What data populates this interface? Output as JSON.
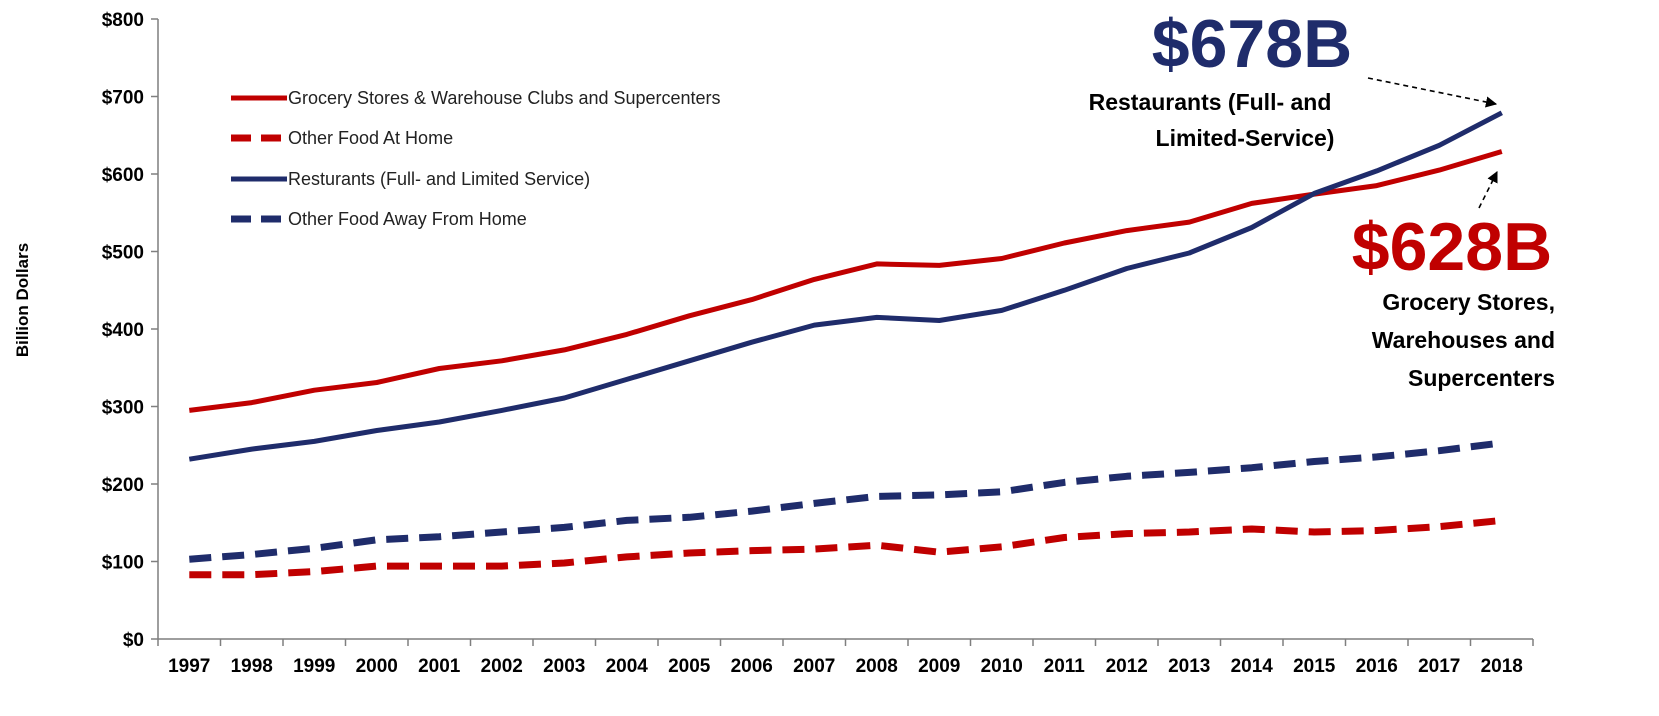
{
  "chart_data": {
    "type": "line",
    "title": "",
    "xlabel": "",
    "ylabel": "Billion Dollars",
    "ylim": [
      0,
      800
    ],
    "y_ticks": [
      0,
      100,
      200,
      300,
      400,
      500,
      600,
      700,
      800
    ],
    "y_tick_labels": [
      "$0",
      "$100",
      "$200",
      "$300",
      "$400",
      "$500",
      "$600",
      "$700",
      "$800"
    ],
    "x": [
      "1997",
      "1998",
      "1999",
      "2000",
      "2001",
      "2002",
      "2003",
      "2004",
      "2005",
      "2006",
      "2007",
      "2008",
      "2009",
      "2010",
      "2011",
      "2012",
      "2013",
      "2014",
      "2015",
      "2016",
      "2017",
      "2018"
    ],
    "grid": false,
    "legend_position": "top-left",
    "series": [
      {
        "name": "Grocery Stores & Warehouse Clubs and Supercenters",
        "color": "#c00000",
        "style": "solid",
        "values": [
          295,
          305,
          321,
          331,
          349,
          359,
          373,
          393,
          417,
          438,
          464,
          484,
          482,
          491,
          511,
          527,
          538,
          562,
          574,
          585,
          605,
          629
        ]
      },
      {
        "name": "Other Food At Home",
        "color": "#c00000",
        "style": "dashed",
        "values": [
          83,
          83,
          87,
          94,
          94,
          94,
          98,
          106,
          111,
          114,
          116,
          121,
          112,
          119,
          131,
          136,
          138,
          142,
          138,
          140,
          145,
          153
        ]
      },
      {
        "name": "Resturants (Full- and Limited Service)",
        "color": "#1f2c6b",
        "style": "solid",
        "values": [
          232,
          245,
          255,
          269,
          280,
          295,
          311,
          335,
          359,
          383,
          405,
          415,
          411,
          424,
          450,
          478,
          498,
          531,
          575,
          604,
          637,
          679
        ]
      },
      {
        "name": "Other Food Away From Home",
        "color": "#1f2c6b",
        "style": "dashed",
        "values": [
          103,
          109,
          117,
          128,
          132,
          138,
          144,
          153,
          157,
          165,
          175,
          184,
          186,
          190,
          202,
          210,
          215,
          221,
          229,
          235,
          243,
          253
        ]
      }
    ],
    "annotations": [
      {
        "value_label": "$678B",
        "text_lines": [
          "Restaurants (Full- and",
          "Limited-Service)"
        ],
        "color": "#1f2c6b",
        "points_to": {
          "x": "2018",
          "y": 678
        }
      },
      {
        "value_label": "$628B",
        "text_lines": [
          "Grocery Stores,",
          "Warehouses and",
          "Supercenters"
        ],
        "color": "#c00000",
        "points_to": {
          "x": "2018",
          "y": 628
        }
      }
    ]
  }
}
